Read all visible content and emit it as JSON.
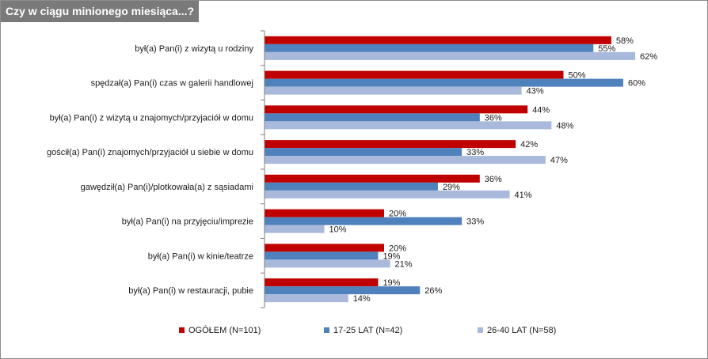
{
  "title": "Czy w ciągu minionego miesiąca...?",
  "colors": {
    "series1": "#c00000",
    "series2": "#4f81bd",
    "series3": "#a8b9dc",
    "title_bg": "#7a7a7a",
    "axis": "#7f7f7f"
  },
  "chart_data": {
    "type": "bar",
    "orientation": "horizontal",
    "categories": [
      "był(a) Pan(i) z wizytą u rodziny",
      "spędzał(a) Pan(i)  czas w galerii handlowej",
      "był(a) Pan(i) z wizytą u znajomych/przyjaciół w domu",
      "gościł(a) Pan(i) znajomych/przyjaciół u siebie w domu",
      "gawędził(a) Pan(i)/plotkowała(a) z sąsiadami",
      "był(a) Pan(i) na przyjęciu/imprezie",
      "był(a) Pan(i) w kinie/teatrze",
      "był(a) Pan(i) w restauracji, pubie"
    ],
    "series": [
      {
        "name": "OGÓŁEM (N=101)",
        "values": [
          58,
          50,
          44,
          42,
          36,
          20,
          20,
          19
        ],
        "labels": [
          "58%",
          "50%",
          "44%",
          "42%",
          "36%",
          "20%",
          "20%",
          "19%"
        ]
      },
      {
        "name": "17-25 LAT  (N=42)",
        "values": [
          55,
          60,
          36,
          33,
          29,
          33,
          19,
          26
        ],
        "labels": [
          "55%",
          "60%",
          "36%",
          "33%",
          "29%",
          "33%",
          "19%",
          "26%"
        ]
      },
      {
        "name": "26-40 LAT  (N=58)",
        "values": [
          62,
          43,
          48,
          47,
          41,
          10,
          21,
          14
        ],
        "labels": [
          "62%",
          "43%",
          "48%",
          "47%",
          "41%",
          "10%",
          "21%",
          "14%"
        ]
      }
    ],
    "xlim": [
      0,
      70
    ],
    "grid": false,
    "legend_position": "bottom",
    "data_labels": true
  }
}
